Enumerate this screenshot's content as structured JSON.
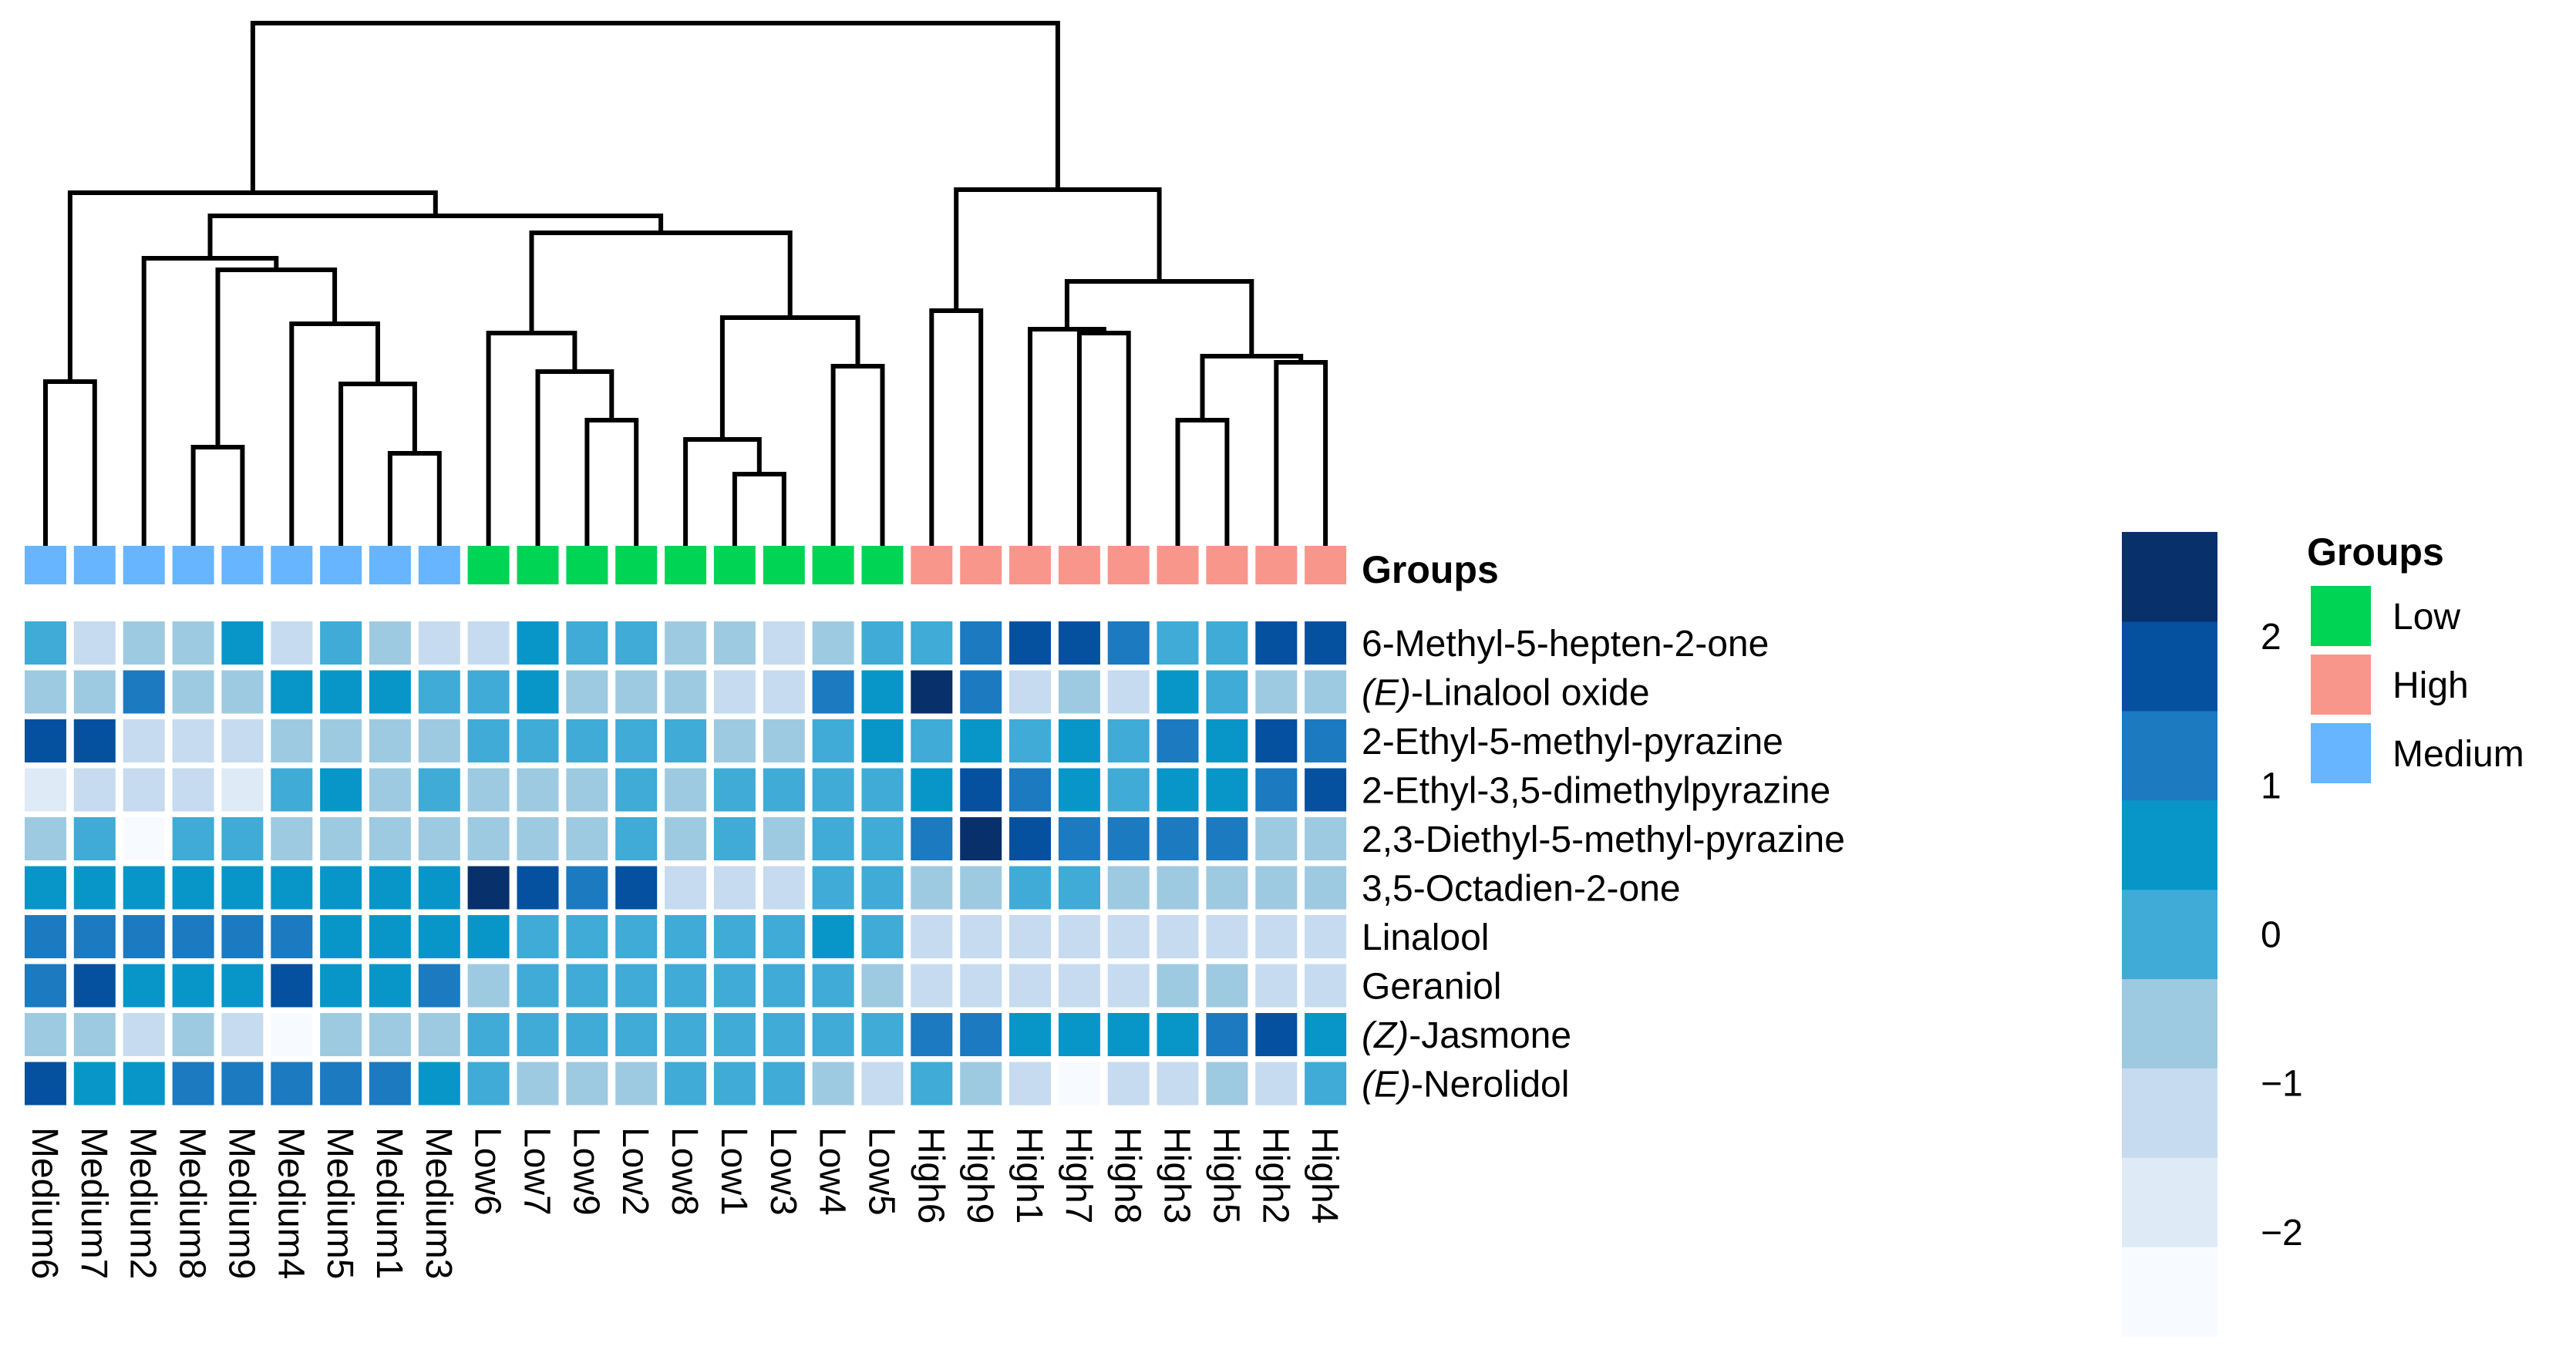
{
  "chart_data": {
    "type": "heatmap",
    "title": "",
    "columns": [
      "Medium6",
      "Medium7",
      "Medium2",
      "Medium8",
      "Medium9",
      "Medium4",
      "Medium5",
      "Medium1",
      "Medium3",
      "Low6",
      "Low7",
      "Low9",
      "Low2",
      "Low8",
      "Low1",
      "Low3",
      "Low4",
      "Low5",
      "High6",
      "High9",
      "High1",
      "High7",
      "High8",
      "High3",
      "High5",
      "High2",
      "High4"
    ],
    "column_groups": [
      "Medium",
      "Medium",
      "Medium",
      "Medium",
      "Medium",
      "Medium",
      "Medium",
      "Medium",
      "Medium",
      "Low",
      "Low",
      "Low",
      "Low",
      "Low",
      "Low",
      "Low",
      "Low",
      "Low",
      "High",
      "High",
      "High",
      "High",
      "High",
      "High",
      "High",
      "High",
      "High"
    ],
    "rows": [
      {
        "plain": "6-Methyl-5-hepten-2-one",
        "prefix": "",
        "rest": "6-Methyl-5-hepten-2-one"
      },
      {
        "plain": "(E)-Linalool oxide",
        "prefix": "(E)",
        "rest": "-Linalool oxide"
      },
      {
        "plain": "2-Ethyl-5-methyl-pyrazine",
        "prefix": "",
        "rest": "2-Ethyl-5-methyl-pyrazine"
      },
      {
        "plain": "2-Ethyl-3,5-dimethylpyrazine",
        "prefix": "",
        "rest": "2-Ethyl-3,5-dimethylpyrazine"
      },
      {
        "plain": "2,3-Diethyl-5-methyl-pyrazine",
        "prefix": "",
        "rest": "2,3-Diethyl-5-methyl-pyrazine"
      },
      {
        "plain": "3,5-Octadien-2-one",
        "prefix": "",
        "rest": "3,5-Octadien-2-one"
      },
      {
        "plain": "Linalool",
        "prefix": "",
        "rest": "Linalool"
      },
      {
        "plain": "Geraniol",
        "prefix": "",
        "rest": "Geraniol"
      },
      {
        "plain": "(Z)-Jasmone",
        "prefix": "(Z)",
        "rest": "-Jasmone"
      },
      {
        "plain": "(E)-Nerolidol",
        "prefix": "(E)",
        "rest": "-Nerolidol"
      }
    ],
    "values": [
      [
        0.0,
        -1.0,
        -0.5,
        -0.5,
        0.5,
        -1.0,
        0.0,
        -0.5,
        -1.0,
        -1.5,
        0.5,
        0.0,
        0.0,
        -0.5,
        -0.5,
        -1.0,
        -0.5,
        0.0,
        0.0,
        1.0,
        1.5,
        1.5,
        1.0,
        0.0,
        0.0,
        1.5,
        1.5
      ],
      [
        -0.5,
        -0.5,
        1.0,
        -0.5,
        -0.5,
        0.5,
        0.5,
        0.5,
        0.0,
        0.0,
        0.5,
        -0.5,
        -0.5,
        -0.5,
        -1.0,
        -1.0,
        1.0,
        0.5,
        2.5,
        1.0,
        -1.0,
        -0.5,
        -1.0,
        0.5,
        0.0,
        -0.5,
        -0.5
      ],
      [
        1.5,
        1.5,
        -1.0,
        -1.0,
        -1.5,
        -0.5,
        -0.5,
        -0.5,
        -0.5,
        0.0,
        0.0,
        0.0,
        0.0,
        0.0,
        -0.5,
        -0.5,
        0.0,
        0.5,
        0.0,
        0.5,
        0.0,
        0.5,
        0.0,
        1.0,
        0.5,
        1.5,
        1.0
      ],
      [
        -2.0,
        -1.0,
        -1.0,
        -1.5,
        -2.0,
        0.0,
        0.5,
        -0.5,
        0.0,
        -0.5,
        -0.5,
        -0.5,
        0.0,
        -0.5,
        0.0,
        0.0,
        0.0,
        0.0,
        0.5,
        1.5,
        1.0,
        0.5,
        0.0,
        0.5,
        0.5,
        1.0,
        1.5
      ],
      [
        -0.5,
        0.0,
        -2.5,
        0.0,
        0.0,
        -0.5,
        -0.5,
        -0.5,
        -0.5,
        -0.5,
        -0.5,
        -0.5,
        0.0,
        -0.5,
        0.0,
        -0.5,
        0.0,
        0.0,
        1.0,
        2.5,
        1.5,
        1.0,
        1.0,
        1.0,
        1.0,
        -0.5,
        -0.5
      ],
      [
        0.5,
        0.5,
        0.5,
        0.5,
        0.5,
        0.5,
        0.5,
        0.5,
        0.5,
        2.5,
        2.0,
        1.0,
        1.5,
        -1.5,
        -1.5,
        -1.5,
        0.0,
        0.0,
        -0.5,
        -0.5,
        0.0,
        0.0,
        -0.5,
        -0.5,
        -0.5,
        -0.5,
        -0.5
      ],
      [
        1.0,
        1.0,
        1.0,
        1.0,
        1.0,
        1.0,
        0.5,
        0.5,
        0.5,
        0.5,
        0.0,
        0.0,
        0.0,
        0.0,
        0.0,
        0.0,
        0.5,
        0.0,
        -1.0,
        -1.0,
        -1.0,
        -1.0,
        -1.0,
        -1.0,
        -1.5,
        -1.5,
        -1.5
      ],
      [
        1.0,
        1.5,
        0.5,
        0.5,
        0.5,
        1.5,
        0.5,
        0.5,
        1.0,
        -0.5,
        0.0,
        0.0,
        0.0,
        0.0,
        0.0,
        0.0,
        0.0,
        -0.5,
        -1.0,
        -1.0,
        -1.0,
        -1.0,
        -1.0,
        -0.5,
        -0.5,
        -1.5,
        -1.0
      ],
      [
        -0.5,
        -0.5,
        -1.0,
        -0.5,
        -1.0,
        -2.5,
        -0.5,
        -0.5,
        -0.5,
        0.0,
        0.0,
        0.0,
        0.0,
        0.0,
        0.0,
        0.0,
        0.0,
        0.0,
        1.0,
        1.0,
        0.5,
        0.5,
        0.5,
        0.5,
        1.0,
        1.5,
        0.5
      ],
      [
        1.5,
        0.5,
        0.5,
        1.0,
        1.0,
        1.0,
        1.0,
        1.0,
        0.5,
        0.0,
        -0.5,
        -0.5,
        -0.5,
        0.0,
        0.0,
        0.0,
        -0.5,
        -1.0,
        0.0,
        -0.5,
        -1.0,
        -2.5,
        -1.0,
        -1.0,
        -0.5,
        -1.0,
        0.0
      ]
    ],
    "color_scale": {
      "ticks": [
        2,
        1,
        0,
        -1,
        -2
      ],
      "tick_labels": [
        "2",
        "1",
        "0",
        "−1",
        "−2"
      ],
      "range": [
        -2.7,
        2.7
      ],
      "bins": 9,
      "colors": [
        "#f7fbff",
        "#deebf7",
        "#c6dbef",
        "#9ecae1",
        "#3fabd6",
        "#0896c8",
        "#1b7ac0",
        "#0551a0",
        "#08306b"
      ]
    },
    "groups_label": "Groups",
    "legend": {
      "title": "Groups",
      "items": [
        {
          "label": "Low",
          "color": "#00d455"
        },
        {
          "label": "High",
          "color": "#f9968c"
        },
        {
          "label": "Medium",
          "color": "#66b5fe"
        }
      ]
    }
  }
}
